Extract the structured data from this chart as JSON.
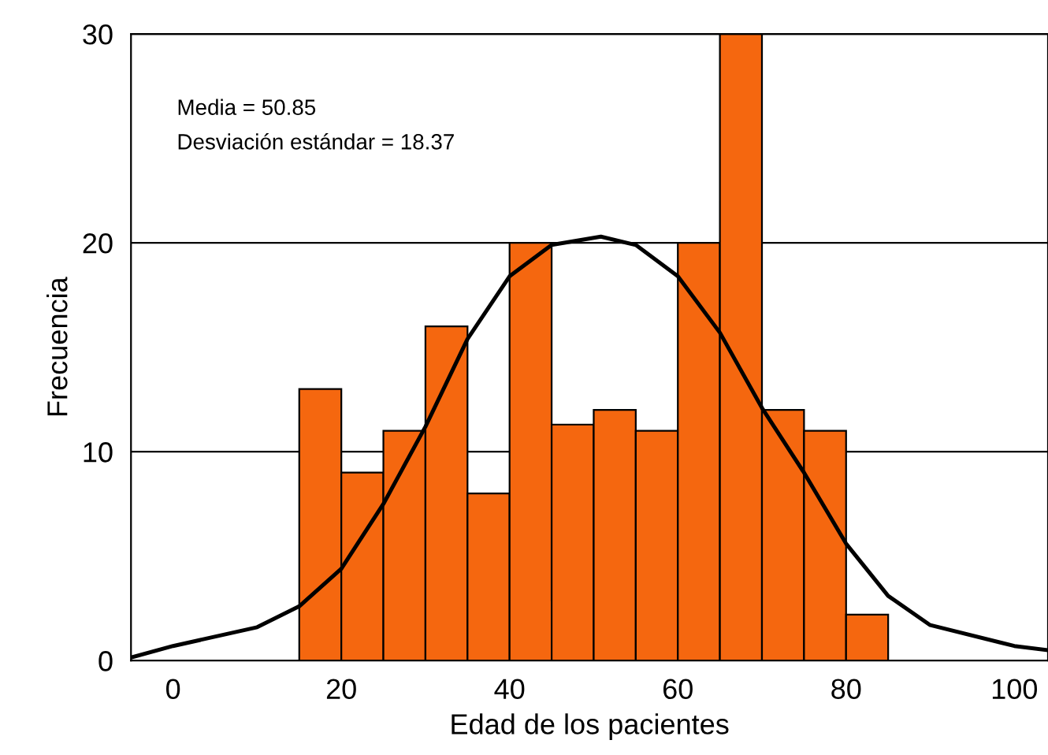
{
  "chart_data": {
    "type": "histogram",
    "xlabel": "Edad de los pacientes",
    "ylabel": "Frecuencia",
    "bins": [
      15,
      20,
      25,
      30,
      35,
      40,
      45,
      50,
      55,
      60,
      65,
      70,
      75,
      80,
      85
    ],
    "values": [
      13,
      9,
      11,
      16,
      8,
      20,
      11.3,
      12,
      11,
      20,
      30,
      12,
      11,
      2.2
    ],
    "color": "#f5670f",
    "series": [
      {
        "type": "line",
        "color": "#000000",
        "x": [
          -5,
          0,
          10,
          15,
          20,
          25,
          30,
          35,
          40,
          45,
          50.85,
          55,
          60,
          65,
          70,
          75,
          80,
          85,
          90,
          100,
          104
        ],
        "values": [
          0.15,
          0.7,
          1.6,
          2.6,
          4.4,
          7.5,
          11.2,
          15.4,
          18.4,
          19.9,
          20.3,
          19.9,
          18.4,
          15.7,
          12.1,
          9,
          5.6,
          3.1,
          1.7,
          0.7,
          0.5
        ]
      }
    ],
    "xlim": [
      -5,
      104
    ],
    "xticks": [
      0,
      20,
      40,
      60,
      80,
      100
    ],
    "ylim": [
      0,
      30
    ],
    "yticks": [
      0,
      10,
      20,
      30
    ],
    "grid": "y",
    "annotations": [
      "Media = 50.85",
      "Desviación estándar = 18.37"
    ]
  }
}
